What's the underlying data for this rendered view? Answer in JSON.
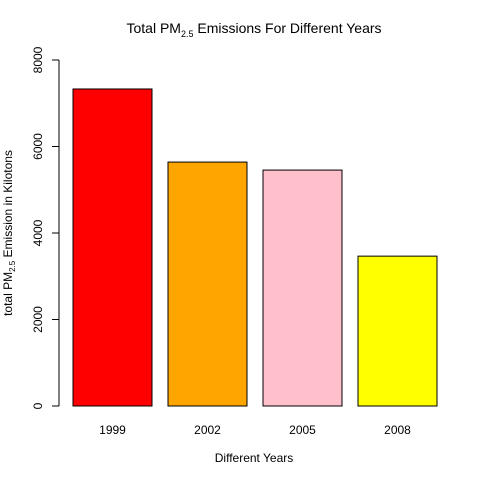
{
  "chart_data": {
    "type": "bar",
    "title": {
      "prefix": "Total PM",
      "sub": "2.5",
      "suffix": " Emissions For Different Years"
    },
    "xlabel": "Different Years",
    "ylabel": {
      "prefix": "total PM",
      "sub": "2.5",
      "suffix": " Emission in Kilotons"
    },
    "categories": [
      "1999",
      "2002",
      "2005",
      "2008"
    ],
    "values": [
      7330,
      5640,
      5455,
      3465
    ],
    "colors": [
      "#FF0000",
      "#FFA500",
      "#FFC0CB",
      "#FFFF00"
    ],
    "ylim": [
      0,
      8000
    ],
    "yticks": [
      "0",
      "2000",
      "4000",
      "6000",
      "8000"
    ],
    "grid": false,
    "legend": "none"
  }
}
